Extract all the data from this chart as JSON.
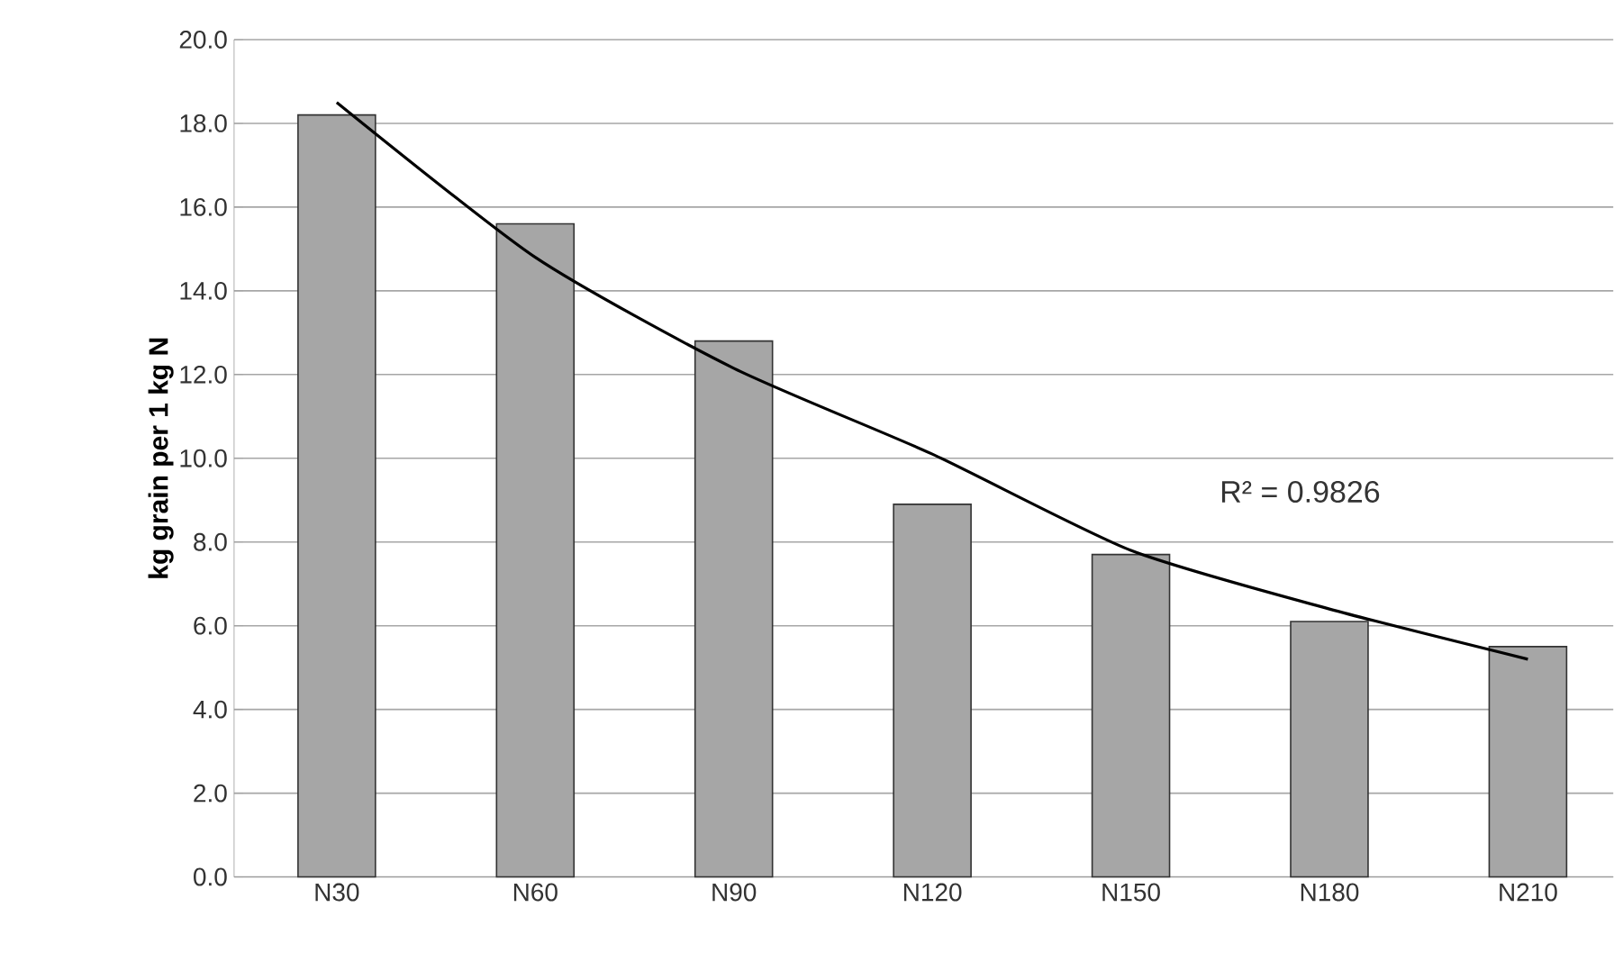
{
  "chart_data": {
    "type": "bar",
    "ylabel": "kg grain per 1 kg N",
    "categories": [
      "N30",
      "N60",
      "N90",
      "N120",
      "N150",
      "N180",
      "N210"
    ],
    "series": [
      {
        "color": "#a6a6a6",
        "values": [
          18.2,
          15.6,
          12.8,
          8.9,
          7.7,
          6.1,
          5.5
        ]
      },
      {
        "type": "line",
        "color": "#000000",
        "values": [
          18.5,
          14.8,
          12.15,
          10.1,
          7.8,
          6.4,
          5.2
        ]
      }
    ],
    "ylim": [
      0,
      20
    ],
    "yticks": [
      {
        "value": 0,
        "label": "0.0"
      },
      {
        "value": 2,
        "label": "2.0"
      },
      {
        "value": 4,
        "label": "4.0"
      },
      {
        "value": 6,
        "label": "6.0"
      },
      {
        "value": 8,
        "label": "8.0"
      },
      {
        "value": 10,
        "label": "10.0"
      },
      {
        "value": 12,
        "label": "12.0"
      },
      {
        "value": 14,
        "label": "14.0"
      },
      {
        "value": 16,
        "label": "16.0"
      },
      {
        "value": 18,
        "label": "18.0"
      },
      {
        "value": 20,
        "label": "20.0"
      }
    ],
    "grid": "y",
    "annotations": [
      "R² = 0.9826"
    ]
  }
}
